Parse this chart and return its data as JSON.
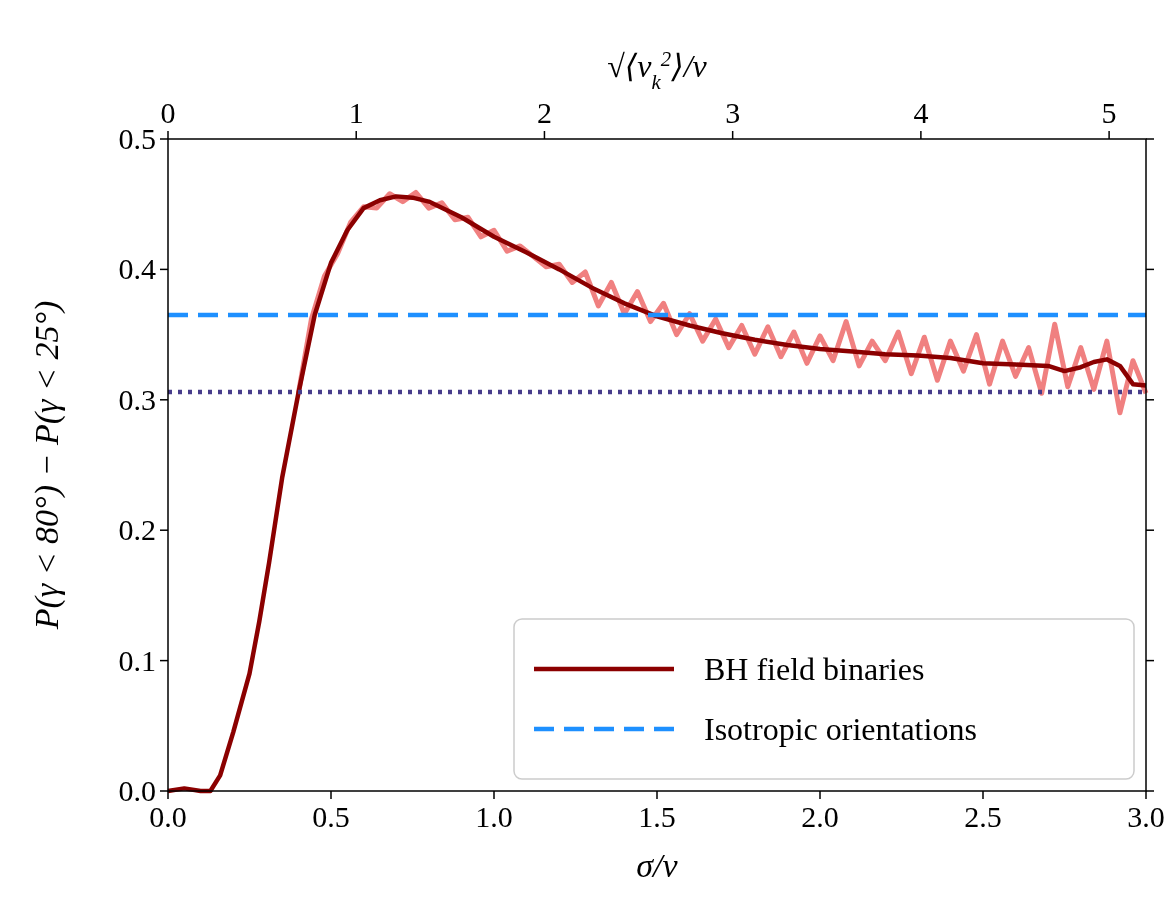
{
  "chart_data": {
    "type": "line",
    "xlabel": "σ/v",
    "ylabel": "P(γ < 80°) − P(γ < 25°)",
    "x2label": "√⟨v$_{k}$$^{2}$⟩/v",
    "xlim": [
      0,
      3
    ],
    "ylim": [
      0,
      0.5
    ],
    "xticks": [
      {
        "value": 0,
        "label": "0.0"
      },
      {
        "value": 0.5,
        "label": "0.5"
      },
      {
        "value": 1,
        "label": "1.0"
      },
      {
        "value": 1.5,
        "label": "1.5"
      },
      {
        "value": 2,
        "label": "2.0"
      },
      {
        "value": 2.5,
        "label": "2.5"
      },
      {
        "value": 3,
        "label": "3.0"
      }
    ],
    "yticks": [
      {
        "value": 0,
        "label": "0.0"
      },
      {
        "value": 0.1,
        "label": "0.1"
      },
      {
        "value": 0.2,
        "label": "0.2"
      },
      {
        "value": 0.3,
        "label": "0.3"
      },
      {
        "value": 0.4,
        "label": "0.4"
      },
      {
        "value": 0.5,
        "label": "0.5"
      }
    ],
    "x2lim": [
      0,
      5.196
    ],
    "x2ticks": [
      0,
      1,
      2,
      3,
      4,
      5
    ],
    "legend": "bottom right",
    "grid": false,
    "series": [
      {
        "color": "#f08080",
        "x": [
          0.4,
          0.44,
          0.48,
          0.52,
          0.56,
          0.6,
          0.64,
          0.68,
          0.72,
          0.76,
          0.8,
          0.84,
          0.88,
          0.92,
          0.96,
          1.0,
          1.04,
          1.08,
          1.12,
          1.16,
          1.2,
          1.24,
          1.28,
          1.32,
          1.36,
          1.4,
          1.44,
          1.48,
          1.52,
          1.56,
          1.6,
          1.64,
          1.68,
          1.72,
          1.76,
          1.8,
          1.84,
          1.88,
          1.92,
          1.96,
          2.0,
          2.04,
          2.08,
          2.12,
          2.16,
          2.2,
          2.24,
          2.28,
          2.32,
          2.36,
          2.4,
          2.44,
          2.48,
          2.52,
          2.56,
          2.6,
          2.64,
          2.68,
          2.72,
          2.76,
          2.8,
          2.84,
          2.88,
          2.92,
          2.96,
          3.0
        ],
        "values": [
          0.305,
          0.362,
          0.395,
          0.412,
          0.436,
          0.448,
          0.447,
          0.458,
          0.452,
          0.459,
          0.447,
          0.451,
          0.438,
          0.44,
          0.425,
          0.43,
          0.414,
          0.418,
          0.41,
          0.402,
          0.404,
          0.39,
          0.398,
          0.372,
          0.39,
          0.366,
          0.383,
          0.36,
          0.374,
          0.35,
          0.366,
          0.345,
          0.362,
          0.34,
          0.357,
          0.335,
          0.356,
          0.333,
          0.352,
          0.328,
          0.349,
          0.33,
          0.36,
          0.326,
          0.345,
          0.33,
          0.352,
          0.32,
          0.348,
          0.315,
          0.345,
          0.322,
          0.35,
          0.312,
          0.345,
          0.318,
          0.34,
          0.305,
          0.358,
          0.31,
          0.34,
          0.308,
          0.345,
          0.29,
          0.33,
          0.305
        ]
      },
      {
        "name": "BH field binaries",
        "color": "#8b0000",
        "x": [
          0,
          0.05,
          0.1,
          0.13,
          0.16,
          0.2,
          0.25,
          0.28,
          0.31,
          0.35,
          0.4,
          0.45,
          0.5,
          0.55,
          0.6,
          0.65,
          0.7,
          0.75,
          0.8,
          0.9,
          1.0,
          1.1,
          1.2,
          1.3,
          1.4,
          1.5,
          1.6,
          1.7,
          1.8,
          1.9,
          2.0,
          2.1,
          2.2,
          2.3,
          2.4,
          2.5,
          2.6,
          2.7,
          2.75,
          2.8,
          2.84,
          2.88,
          2.92,
          2.96,
          3.0
        ],
        "values": [
          0,
          0.002,
          0,
          0,
          0.012,
          0.045,
          0.09,
          0.13,
          0.175,
          0.24,
          0.305,
          0.365,
          0.405,
          0.43,
          0.447,
          0.453,
          0.456,
          0.455,
          0.452,
          0.44,
          0.425,
          0.413,
          0.4,
          0.386,
          0.374,
          0.364,
          0.357,
          0.351,
          0.346,
          0.342,
          0.339,
          0.337,
          0.335,
          0.334,
          0.332,
          0.328,
          0.327,
          0.326,
          0.322,
          0.325,
          0.329,
          0.331,
          0.326,
          0.312,
          0.311
        ]
      },
      {
        "name": "Isotropic orientations",
        "color": "#1e90ff",
        "line_style": "dashed",
        "x": [
          0,
          3
        ],
        "values": [
          0.365,
          0.365
        ]
      }
    ],
    "ref_lines": [
      {
        "axis": "y",
        "value": 0.306,
        "color": "#483d8b",
        "line_style": "dotted"
      }
    ]
  }
}
